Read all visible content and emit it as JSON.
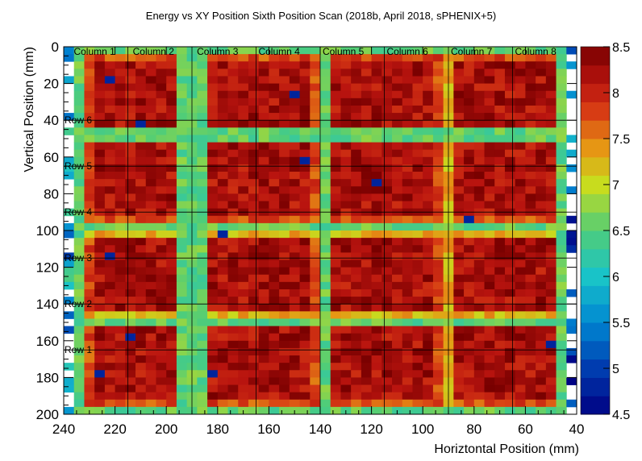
{
  "chart_data": {
    "type": "heatmap",
    "title": "Energy vs XY Position Sixth Position Scan (2018b, April 2018, sPHENIX+5)",
    "xlabel": "Horiztontal Position (mm)",
    "ylabel": "Vertical Position (mm)",
    "xlim": [
      240,
      40
    ],
    "ylim": [
      200,
      0
    ],
    "x_ticks": [
      "240",
      "220",
      "200",
      "180",
      "160",
      "140",
      "120",
      "100",
      "80",
      "60",
      "40"
    ],
    "y_ticks": [
      "0",
      "20",
      "40",
      "60",
      "80",
      "100",
      "120",
      "140",
      "160",
      "180",
      "200"
    ],
    "zlim": [
      4.5,
      8.5
    ],
    "colorbar_ticks": [
      "4.5",
      "5",
      "5.5",
      "6",
      "6.5",
      "7",
      "7.5",
      "8",
      "8.5"
    ],
    "column_labels": [
      "Column 1",
      "Column 2",
      "Column 3",
      "Column 4",
      "Column 5",
      "Column 6",
      "Column 7",
      "Column 8"
    ],
    "row_labels": [
      "Row 6",
      "Row 5",
      "Row 4",
      "Row 3",
      "Row 2",
      "Row 1"
    ],
    "grid_x": [
      240,
      215,
      190,
      165,
      140,
      115,
      90,
      65,
      40
    ],
    "grid_y": [
      0,
      40,
      65,
      90,
      115,
      140,
      165,
      200
    ],
    "column_label_x": [
      228,
      205,
      180,
      156,
      131,
      106,
      81,
      56
    ],
    "row_label_y": [
      40,
      65,
      90,
      115,
      140,
      165
    ],
    "towers_x": [
      [
        232,
        195
      ],
      [
        185,
        140
      ],
      [
        137,
        92
      ],
      [
        90,
        47
      ]
    ],
    "towers_y": [
      [
        4,
        45
      ],
      [
        51,
        96
      ],
      [
        101,
        146
      ],
      [
        151,
        196
      ]
    ],
    "tower_peak_energy": 8.3,
    "gap_energy": 6.3,
    "background_energy": 4.5,
    "gridlines": true,
    "colorbar": "right"
  }
}
